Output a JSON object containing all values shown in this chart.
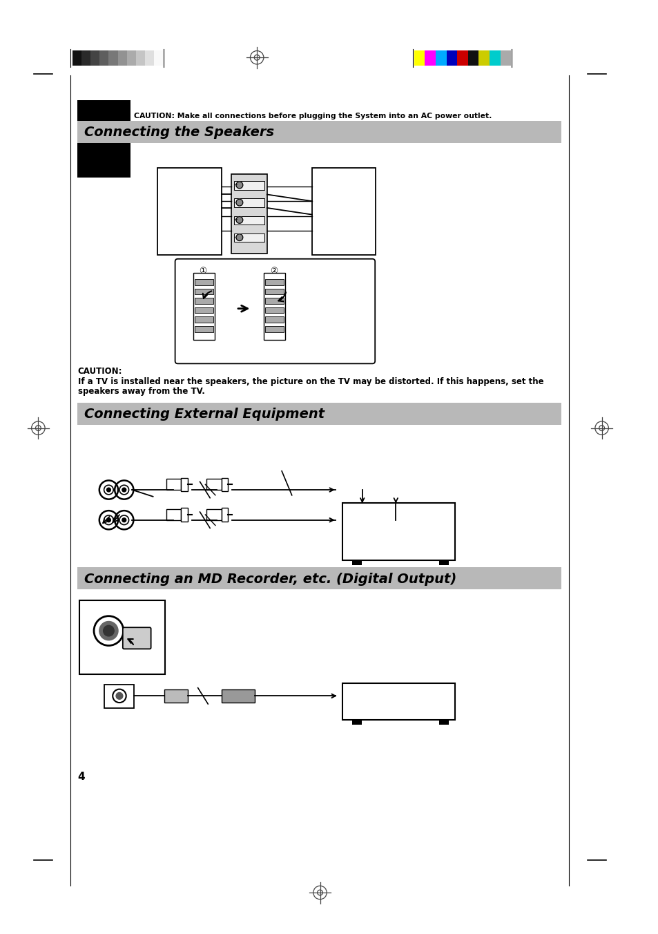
{
  "bg_color": "#ffffff",
  "page_width": 9.54,
  "page_height": 13.52,
  "header_bar_color": "#b8b8b8",
  "caution_text_1": "CAUTION: Make all connections before plugging the System into an AC power outlet.",
  "section1_title": "Connecting the Speakers",
  "caution_bold": "CAUTION:",
  "caution_line1": "If a TV is installed near the speakers, the picture on the TV may be distorted. If this happens, set the",
  "caution_line2": "speakers away from the TV.",
  "section2_title": "Connecting External Equipment",
  "section3_title": "Connecting an MD Recorder, etc. (Digital Output)",
  "page_number": "4",
  "bar_colors_left": [
    "#111111",
    "#2a2a2a",
    "#444444",
    "#5e5e5e",
    "#787878",
    "#929292",
    "#ababab",
    "#c5c5c5",
    "#dfdfdf",
    "#f9f9f9"
  ],
  "bar_colors_right": [
    "#ffff00",
    "#ff00ff",
    "#00aaff",
    "#0000bb",
    "#cc0000",
    "#111111",
    "#cccc00",
    "#00cccc",
    "#aaaaaa"
  ],
  "crosshair_color": "#444444"
}
